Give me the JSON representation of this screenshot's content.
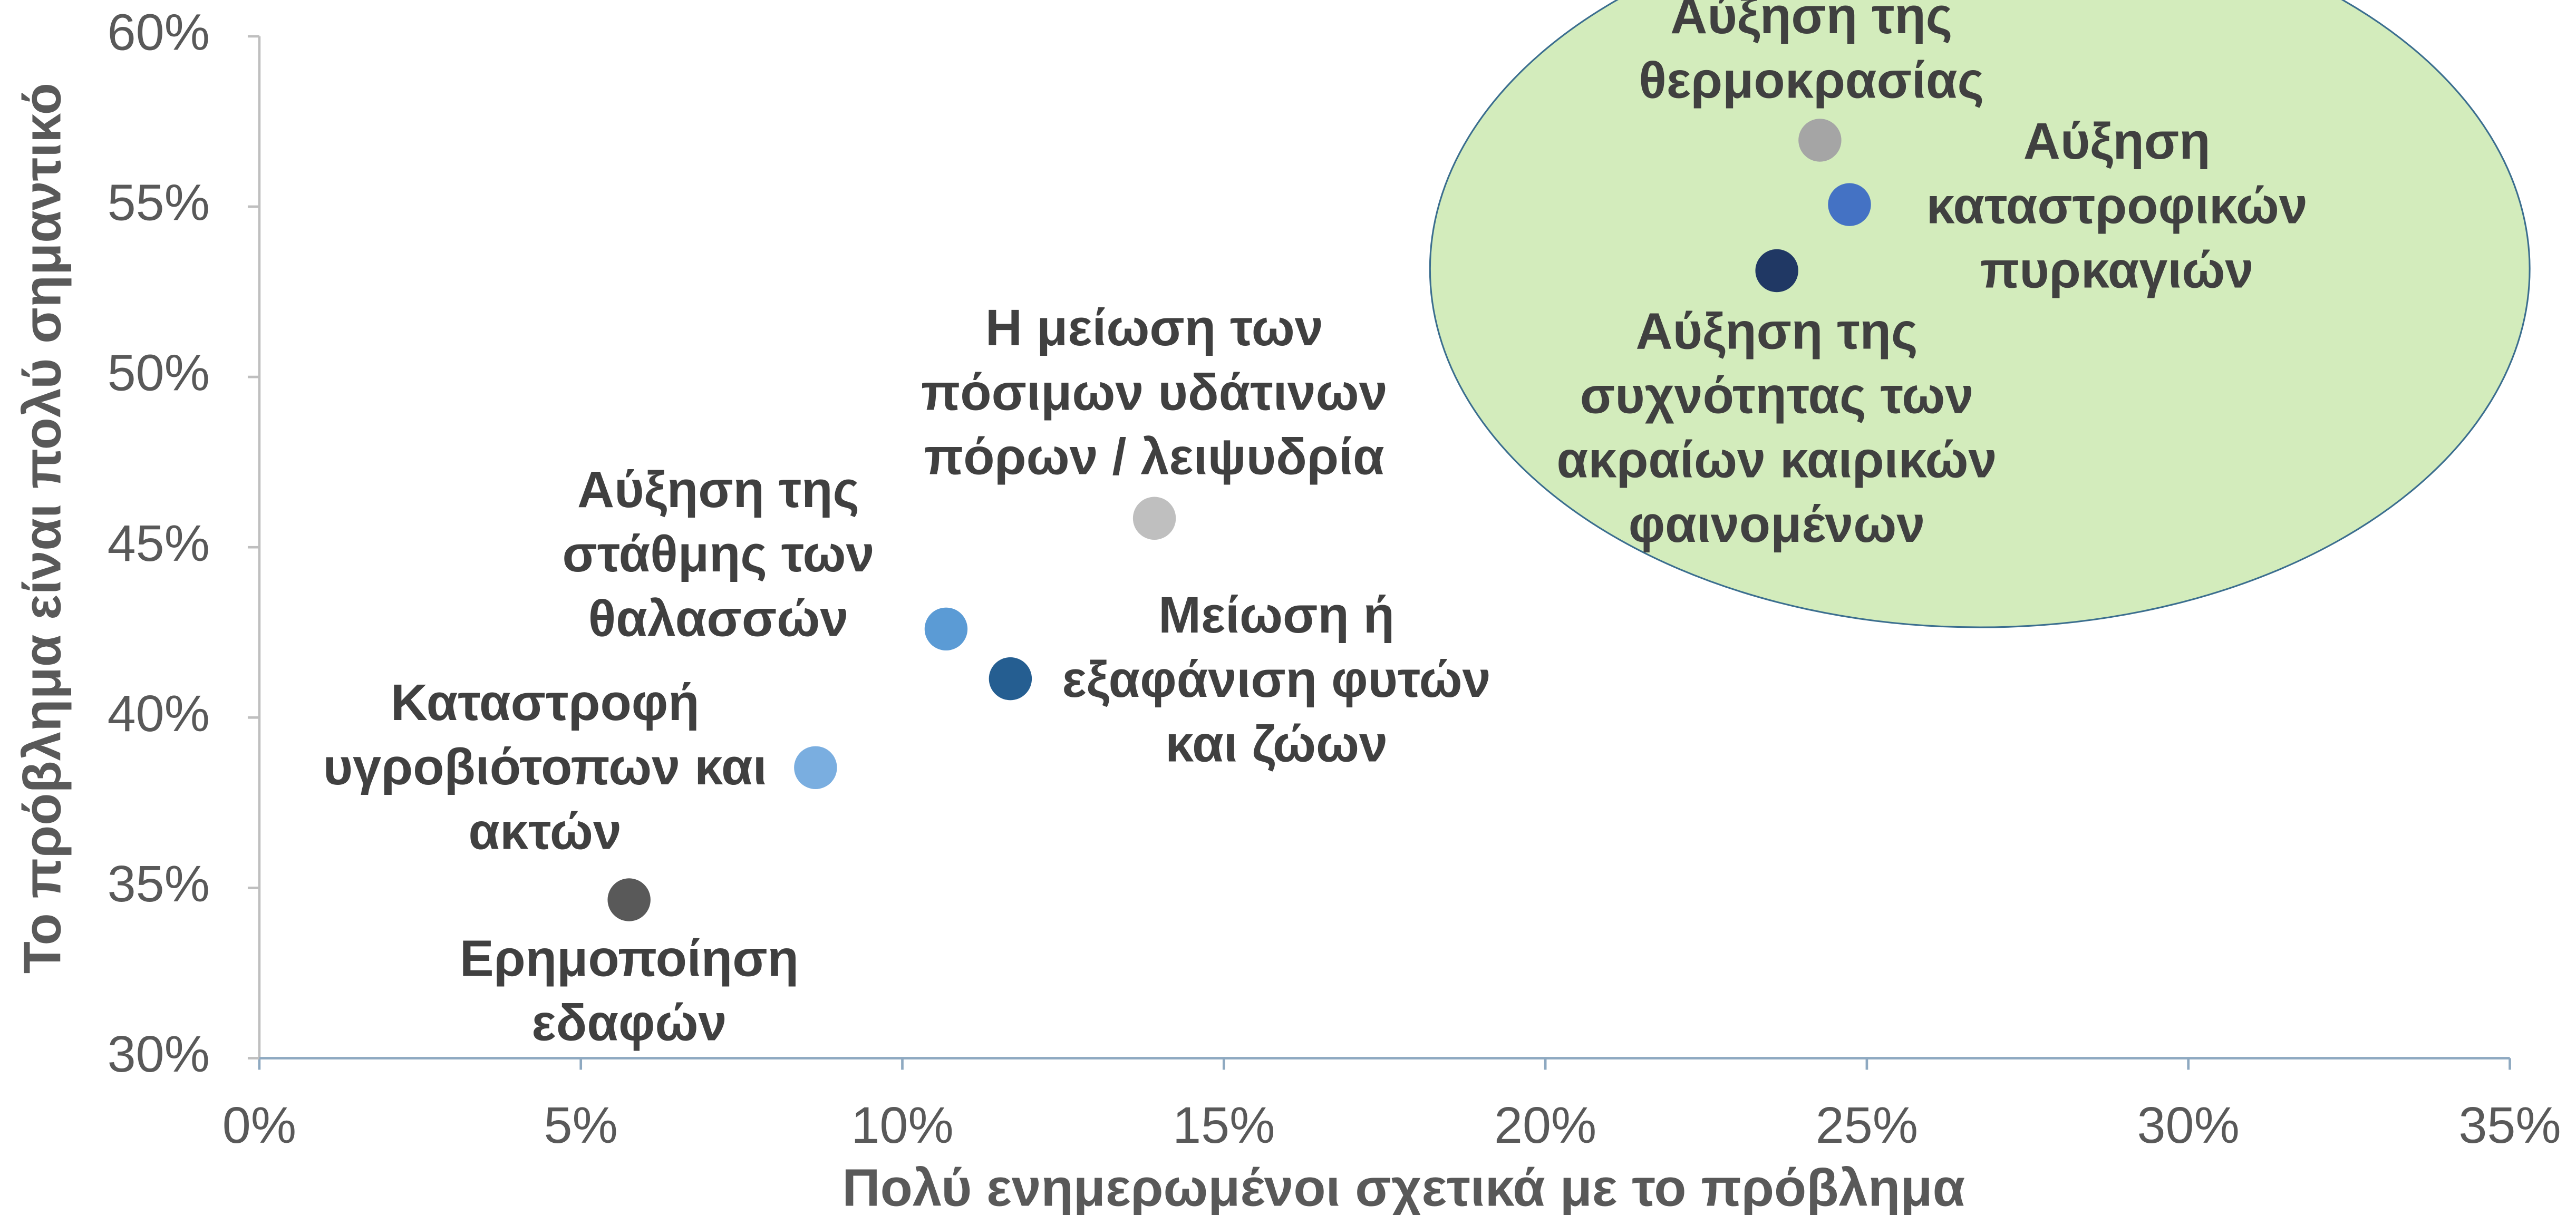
{
  "chart_data": {
    "type": "scatter",
    "x_label": "Πολύ ενημερωμένοι σχετικά με το πρόβλημα",
    "y_label": "Το πρόβλημα είναι πολύ σημαντικό",
    "xlim": [
      0,
      35
    ],
    "xticks": [
      {
        "value": 0,
        "label": "0%"
      },
      {
        "value": 5,
        "label": "5%"
      },
      {
        "value": 10,
        "label": "10%"
      },
      {
        "value": 15,
        "label": "15%"
      },
      {
        "value": 20,
        "label": "20%"
      },
      {
        "value": 25,
        "label": "25%"
      },
      {
        "value": 30,
        "label": "30%"
      },
      {
        "value": 35,
        "label": "35%"
      }
    ],
    "ylim": [
      30,
      60
    ],
    "yticks": [
      {
        "value": 30,
        "label": "30%"
      },
      {
        "value": 35,
        "label": "35%"
      },
      {
        "value": 40,
        "label": "40%"
      },
      {
        "value": 45,
        "label": "45%"
      },
      {
        "value": 50,
        "label": "50%"
      },
      {
        "value": 55,
        "label": "55%"
      },
      {
        "value": 60,
        "label": "60%"
      }
    ],
    "x": [
      5.75,
      8.65,
      10.68,
      11.68,
      13.92,
      24.27,
      24.73,
      23.6
    ],
    "y": [
      34.65,
      38.53,
      42.6,
      41.14,
      45.85,
      56.95,
      55.06,
      53.12
    ],
    "colors": [
      "#595959",
      "#7aaee0",
      "#5b9bd5",
      "#255e91",
      "#bfbfbf",
      "#a5a5a5",
      "#4472c4",
      "#203864"
    ],
    "labels": [
      [
        "Ερημοποίηση",
        "εδαφών"
      ],
      [
        "Καταστροφή",
        "υγροβιότοπων και",
        "ακτών"
      ],
      [
        "Αύξηση της",
        "στάθμης των",
        "θαλασσών"
      ],
      [
        "Μείωση ή",
        "εξαφάνιση φυτών",
        "και ζώων"
      ],
      [
        "Η μείωση των",
        "πόσιμων υδάτινων",
        "πόρων / λειψυδρία"
      ],
      [
        "Αύξηση της",
        "θερμοκρασίας"
      ],
      [
        "Αύξηση",
        "καταστροφικών",
        "πυρκαγιών"
      ],
      [
        "Αύξηση της",
        "συχνότητας των",
        "ακραίων καιρικών",
        "φαινομένων"
      ]
    ]
  }
}
